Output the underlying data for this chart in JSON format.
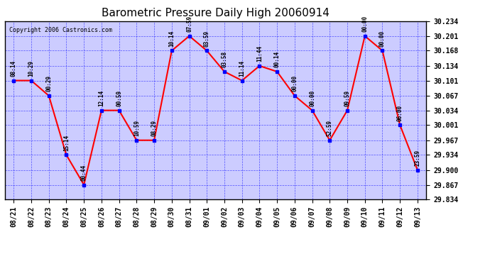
{
  "title": "Barometric Pressure Daily High 20060914",
  "copyright": "Copyright 2006 Castronics.com",
  "background_color": "#ffffff",
  "plot_bg_color": "#ccccff",
  "line_color": "red",
  "marker_color": "blue",
  "grid_color": "#0000ff",
  "x_labels": [
    "08/21",
    "08/22",
    "08/23",
    "08/24",
    "08/25",
    "08/26",
    "08/27",
    "08/28",
    "08/29",
    "08/30",
    "08/31",
    "09/01",
    "09/02",
    "09/03",
    "09/04",
    "09/05",
    "09/06",
    "09/07",
    "09/08",
    "09/09",
    "09/10",
    "09/11",
    "09/12",
    "09/13"
  ],
  "y_values": [
    30.101,
    30.101,
    30.067,
    29.934,
    29.867,
    30.034,
    30.034,
    29.967,
    29.967,
    30.168,
    30.201,
    30.168,
    30.121,
    30.101,
    30.134,
    30.121,
    30.067,
    30.034,
    29.967,
    30.034,
    30.201,
    30.168,
    30.001,
    29.9
  ],
  "point_labels": [
    "08:14",
    "10:29",
    "00:29",
    "15:14",
    "00:44",
    "12:14",
    "00:59",
    "10:59",
    "08:29",
    "10:14",
    "07:59",
    "03:59",
    "03:58",
    "11:14",
    "11:44",
    "00:14",
    "00:00",
    "00:00",
    "52:59",
    "09:59",
    "00:00",
    "00:00",
    "06:00",
    "23:59"
  ],
  "ylim_min": 29.834,
  "ylim_max": 30.234,
  "yticks": [
    29.834,
    29.867,
    29.9,
    29.934,
    29.967,
    30.001,
    30.034,
    30.067,
    30.101,
    30.134,
    30.168,
    30.201,
    30.234
  ]
}
